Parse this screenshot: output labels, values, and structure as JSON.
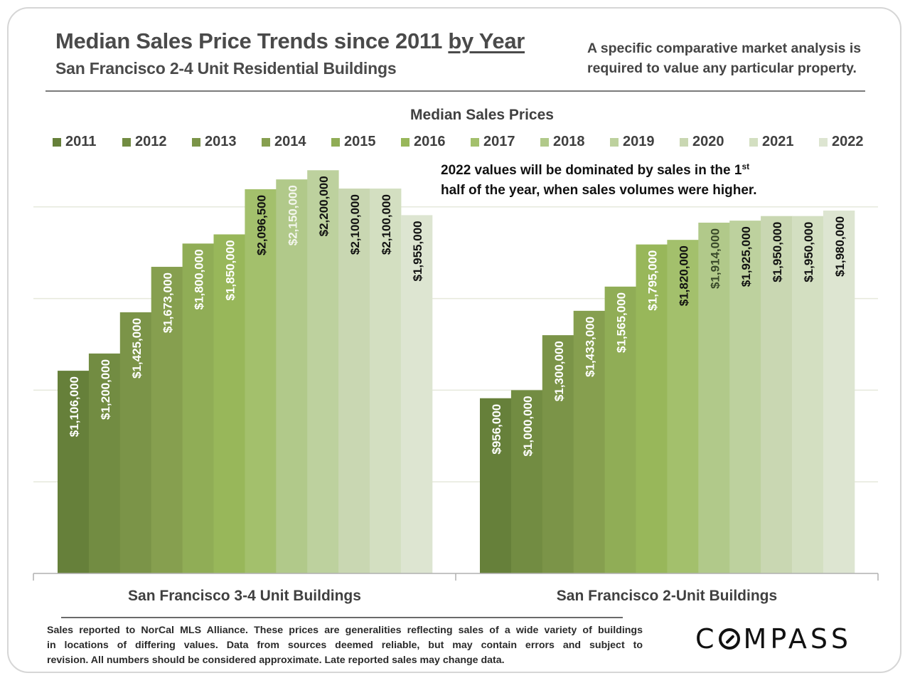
{
  "header": {
    "title_main": "Median Sales Price Trends since 2011 ",
    "title_emph": "by Year",
    "subtitle": "San Francisco 2-4 Unit Residential Buildings",
    "disclaimer": "A specific comparative market analysis is required to value any particular property."
  },
  "annotation": {
    "text_before_sup": "2022 values will be dominated by sales in the 1",
    "sup": "st",
    "text_line2": "half of the year, when sales volumes were higher."
  },
  "footer": {
    "lines": [
      "Sales reported to NorCal MLS Alliance. These prices are generalities reflecting sales of a wide variety of buildings",
      "in locations of differing values. Data from sources deemed reliable, but may contain errors and subject to",
      "revision. All numbers  should be considered approximate.  Late reported sales may change data."
    ],
    "logo_text_before": "C",
    "logo_text_after": "MPASS"
  },
  "chart_data": {
    "type": "bar",
    "title": "Median Sales Prices",
    "xlabel": "",
    "ylabel": "",
    "ylim": [
      0,
      2500000
    ],
    "gridlines": [
      500000,
      1000000,
      1500000,
      2000000
    ],
    "grid": true,
    "legend_position": "top",
    "categories": [
      "San Francisco 3-4 Unit Buildings",
      "San Francisco 2-Unit Buildings"
    ],
    "series": [
      {
        "name": "2011",
        "color": "#66803a",
        "label_color": "#ffffff",
        "values": [
          1106000,
          956000
        ],
        "labels": [
          "$1,106,000",
          "$956,000"
        ]
      },
      {
        "name": "2012",
        "color": "#728c42",
        "label_color": "#ffffff",
        "values": [
          1200000,
          1000000
        ],
        "labels": [
          "$1,200,000",
          "$1,000,000"
        ]
      },
      {
        "name": "2013",
        "color": "#7b9448",
        "label_color": "#ffffff",
        "values": [
          1425000,
          1300000
        ],
        "labels": [
          "$1,425,000",
          "$1,300,000"
        ]
      },
      {
        "name": "2014",
        "color": "#869f4f",
        "label_color": "#ffffff",
        "values": [
          1673000,
          1433000
        ],
        "labels": [
          "$1,673,000",
          "$1,433,000"
        ]
      },
      {
        "name": "2015",
        "color": "#90ad56",
        "label_color": "#ffffff",
        "values": [
          1800000,
          1565000
        ],
        "labels": [
          "$1,800,000",
          "$1,565,000"
        ]
      },
      {
        "name": "2016",
        "color": "#98b75a",
        "label_color": "#ffffff",
        "values": [
          1850000,
          1795000
        ],
        "labels": [
          "$1,850,000",
          "$1,795,000"
        ]
      },
      {
        "name": "2017",
        "color": "#a3c06c",
        "label_color": "#111111",
        "values": [
          2096500,
          1820000
        ],
        "labels": [
          "$2,096,500",
          "$1,820,000"
        ]
      },
      {
        "name": "2018",
        "color": "#b1c98a",
        "label_color": "#f4f6ee",
        "label_color_alt": "#3a4a2a",
        "values": [
          2150000,
          1914000
        ],
        "labels": [
          "$2,150,000",
          "$1,914,000"
        ]
      },
      {
        "name": "2019",
        "color": "#bdd19e",
        "label_color": "#111111",
        "values": [
          2200000,
          1925000
        ],
        "labels": [
          "$2,200,000",
          "$1,925,000"
        ]
      },
      {
        "name": "2020",
        "color": "#c9d7b2",
        "label_color": "#111111",
        "values": [
          2100000,
          1950000
        ],
        "labels": [
          "$2,100,000",
          "$1,950,000"
        ]
      },
      {
        "name": "2021",
        "color": "#d3dfc1",
        "label_color": "#111111",
        "values": [
          2100000,
          1950000
        ],
        "labels": [
          "$2,100,000",
          "$1,950,000"
        ]
      },
      {
        "name": "2022",
        "color": "#dde5d1",
        "label_color": "#111111",
        "values": [
          1955000,
          1980000
        ],
        "labels": [
          "$1,955,000",
          "$1,980,000"
        ]
      }
    ]
  }
}
